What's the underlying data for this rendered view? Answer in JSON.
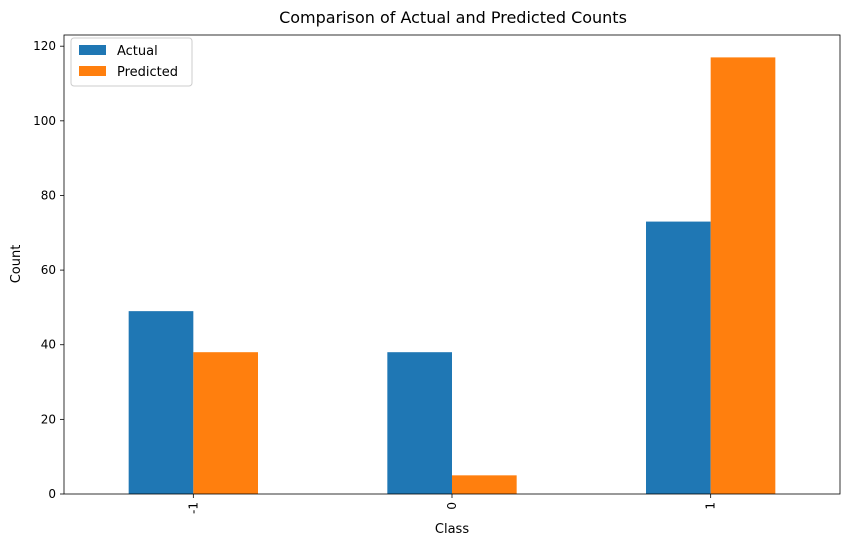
{
  "chart_data": {
    "type": "bar",
    "title": "Comparison of Actual and Predicted Counts",
    "xlabel": "Class",
    "ylabel": "Count",
    "categories": [
      "-1",
      "0",
      "1"
    ],
    "series": [
      {
        "name": "Actual",
        "color": "#1f77b4",
        "values": [
          49,
          38,
          73
        ]
      },
      {
        "name": "Predicted",
        "color": "#ff7f0e",
        "values": [
          38,
          5,
          117
        ]
      }
    ],
    "ylim": [
      0,
      123
    ],
    "yticks": [
      0,
      20,
      40,
      60,
      80,
      100,
      120
    ],
    "xtick_rotation": "vertical",
    "grid": false,
    "legend": "top-left"
  }
}
